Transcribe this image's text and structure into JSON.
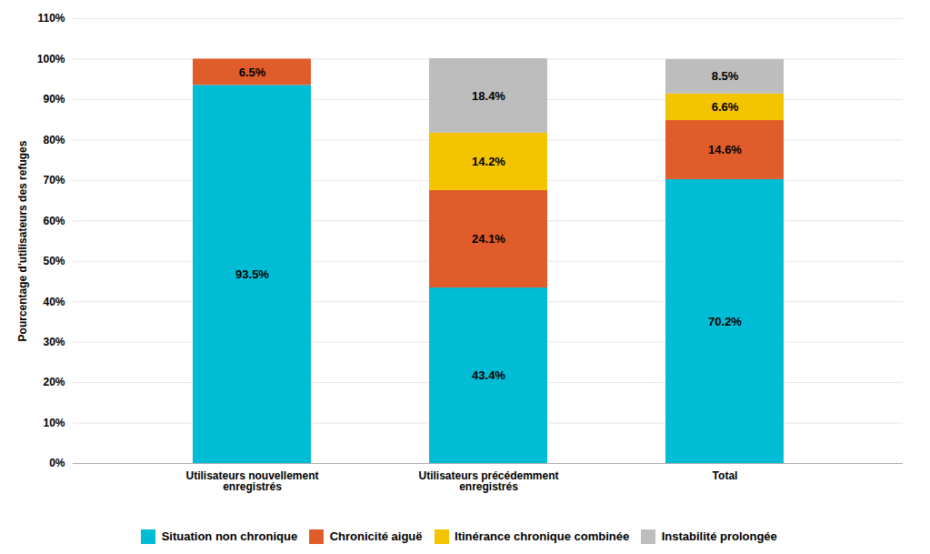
{
  "chart_data": {
    "type": "bar",
    "stacked": true,
    "ylabel": "Pourcentage d'utilisateurs des refuges",
    "categories": [
      "Utilisateurs nouvellement\nenregistrés",
      "Utilisateurs précédemment\nenregistrés",
      "Total"
    ],
    "series": [
      {
        "name": "Situation non chronique",
        "color": "#00BCD4",
        "values": [
          93.5,
          43.4,
          70.2
        ],
        "value_labels": [
          "93.5%",
          "43.4%",
          "70.2%"
        ]
      },
      {
        "name": "Chronicité aiguë",
        "color": "#E05C2A",
        "values": [
          6.5,
          24.1,
          14.6
        ],
        "value_labels": [
          "6.5%",
          "24.1%",
          "14.6%"
        ]
      },
      {
        "name": "Itinérance chronique combinée",
        "color": "#F5C400",
        "values": [
          0.0,
          14.2,
          6.6
        ],
        "value_labels": [
          null,
          "14.2%",
          "6.6%"
        ]
      },
      {
        "name": "Instabilité prolongée",
        "color": "#BDBDBD",
        "values": [
          0.0,
          18.4,
          8.5
        ],
        "value_labels": [
          null,
          "18.4%",
          "8.5%"
        ]
      }
    ],
    "ylim": [
      0,
      110
    ],
    "yticks": [
      {
        "value": 0,
        "label": "0%"
      },
      {
        "value": 10,
        "label": "10%"
      },
      {
        "value": 20,
        "label": "20%"
      },
      {
        "value": 30,
        "label": "30%"
      },
      {
        "value": 40,
        "label": "40%"
      },
      {
        "value": 50,
        "label": "50%"
      },
      {
        "value": 60,
        "label": "60%"
      },
      {
        "value": 70,
        "label": "70%"
      },
      {
        "value": 80,
        "label": "80%"
      },
      {
        "value": 90,
        "label": "90%"
      },
      {
        "value": 100,
        "label": "100%"
      },
      {
        "value": 110,
        "label": "110%"
      }
    ],
    "grid": true,
    "data_labels": true,
    "legend": "bottom"
  }
}
